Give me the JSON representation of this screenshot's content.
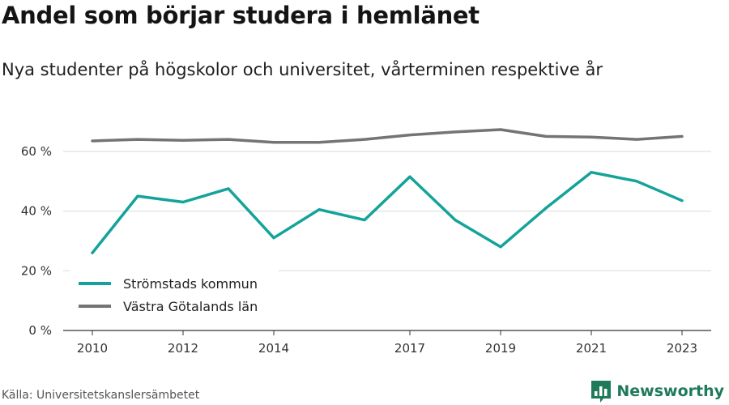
{
  "header": {
    "title": "Andel som börjar studera i hemlänet",
    "subtitle": "Nya studenter på högskolor och universitet, vårterminen respektive år"
  },
  "footer": {
    "source": "Källa: Universitetskanslersämbetet",
    "brand": "Newsworthy",
    "brand_icon": "bar-chart-logo-icon",
    "brand_color": "#1f7a5a"
  },
  "chart_data": {
    "type": "line",
    "x": [
      2010,
      2011,
      2012,
      2013,
      2014,
      2015,
      2016,
      2017,
      2018,
      2019,
      2020,
      2021,
      2022,
      2023
    ],
    "x_tick_labels": [
      "2010",
      "2012",
      "2014",
      "2017",
      "2019",
      "2021",
      "2023"
    ],
    "x_tick_values": [
      2010,
      2012,
      2014,
      2017,
      2019,
      2021,
      2023
    ],
    "y_tick_labels": [
      "0 %",
      "20 %",
      "40 %",
      "60 %"
    ],
    "y_tick_values": [
      0,
      20,
      40,
      60
    ],
    "ylim": [
      0,
      70
    ],
    "grid": true,
    "legend_position": "bottom-left",
    "series": [
      {
        "name": "Strömstads kommun",
        "color": "#14a39a",
        "values": [
          26,
          45,
          43,
          47.5,
          31,
          40.5,
          37,
          51.5,
          37,
          28,
          41,
          53,
          50,
          43.5
        ]
      },
      {
        "name": "Västra Götalands län",
        "color": "#747474",
        "values": [
          63.5,
          64,
          63.7,
          64,
          63,
          63,
          64,
          65.5,
          66.5,
          67.3,
          65,
          64.8,
          64,
          65
        ]
      }
    ]
  }
}
